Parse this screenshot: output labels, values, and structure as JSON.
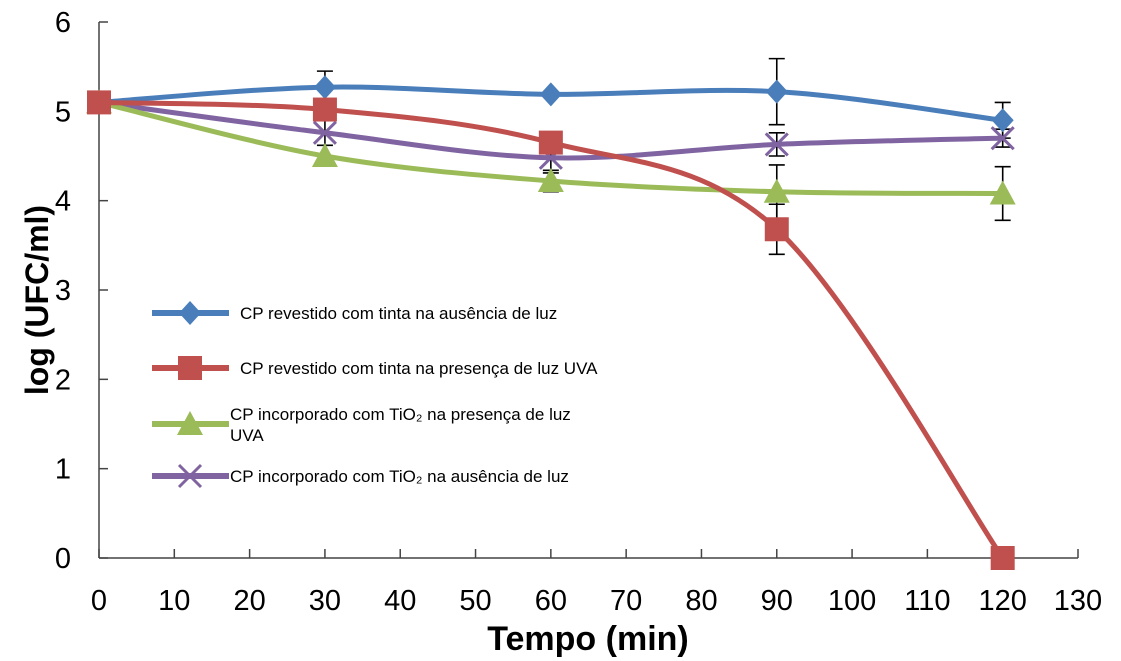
{
  "chart_data": {
    "type": "line",
    "title": "",
    "xlabel": "Tempo (min)",
    "ylabel": "log (UFC/ml)",
    "xlim": [
      0,
      130
    ],
    "ylim": [
      0,
      6
    ],
    "xticks": [
      "0",
      "10",
      "20",
      "30",
      "40",
      "50",
      "60",
      "70",
      "80",
      "90",
      "100",
      "110",
      "120",
      "130"
    ],
    "yticks": [
      "0",
      "1",
      "2",
      "3",
      "4",
      "5",
      "6"
    ],
    "grid": false,
    "legend_position": "center-left",
    "x": [
      0,
      30,
      60,
      90,
      120
    ],
    "series": [
      {
        "name": "CP revestido com tinta na ausência de luz",
        "color": "#4a7ebb",
        "marker": "diamond",
        "values": [
          5.1,
          5.27,
          5.19,
          5.22,
          4.9
        ],
        "errors": [
          0,
          0.18,
          0,
          0.37,
          0.2
        ]
      },
      {
        "name": "CP revestido com tinta na presença de luz UVA",
        "color": "#c0504d",
        "marker": "square",
        "values": [
          5.1,
          5.02,
          4.65,
          3.68,
          0
        ],
        "errors": [
          0,
          0,
          0,
          0.28,
          0
        ]
      },
      {
        "name": "CP incorporado com TiO₂ na presença de luz UVA",
        "color": "#9bbb59",
        "marker": "triangle",
        "values": [
          5.1,
          4.5,
          4.22,
          4.1,
          4.08
        ],
        "errors": [
          0,
          0,
          0.12,
          0.3,
          0.3
        ]
      },
      {
        "name": "CP incorporado com TiO₂ na ausência de luz",
        "color": "#8064a2",
        "marker": "x",
        "values": [
          5.1,
          4.76,
          4.48,
          4.63,
          4.7
        ],
        "errors": [
          0,
          0.14,
          0.17,
          0.13,
          0.1
        ]
      }
    ]
  }
}
